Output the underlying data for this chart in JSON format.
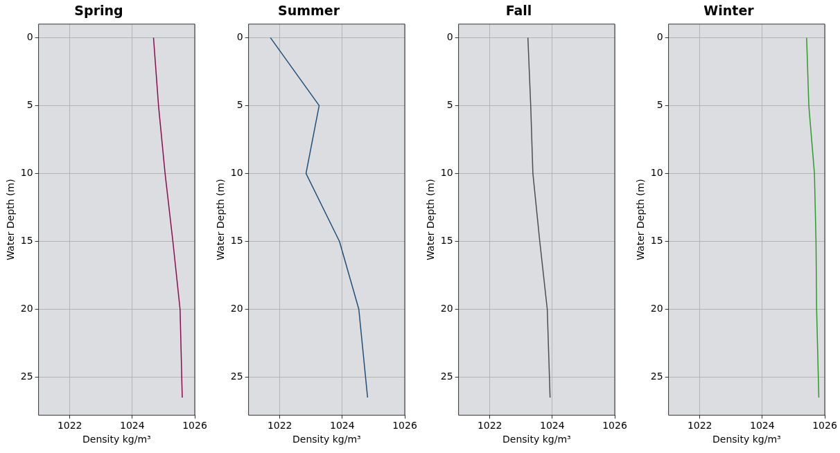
{
  "chart_data": [
    {
      "type": "line",
      "title": "Spring",
      "xlabel": "Density kg/m³",
      "ylabel": "Water Depth (m)",
      "xlim": [
        1021,
        1026
      ],
      "xticks": [
        1022,
        1024,
        1026
      ],
      "ylim": [
        27.8,
        -1
      ],
      "yticks": [
        0,
        5,
        10,
        15,
        20,
        25
      ],
      "grid": true,
      "legend": false,
      "marker": "none",
      "line_style": "solid",
      "series": [
        {
          "color": "#8b0a50",
          "x": [
            1024.68,
            1024.84,
            1025.05,
            1025.3,
            1025.53,
            1025.6
          ],
          "values": [
            0,
            5,
            10,
            15,
            20,
            26.5
          ]
        }
      ]
    },
    {
      "type": "line",
      "title": "Summer",
      "xlabel": "Density kg/m³",
      "ylabel": "Water Depth (m)",
      "xlim": [
        1021,
        1026
      ],
      "xticks": [
        1022,
        1024,
        1026
      ],
      "ylim": [
        27.8,
        -1
      ],
      "yticks": [
        0,
        5,
        10,
        15,
        20,
        25
      ],
      "grid": true,
      "legend": false,
      "marker": "none",
      "line_style": "solid",
      "series": [
        {
          "color": "#1f4e79",
          "x": [
            1021.7,
            1023.26,
            1022.84,
            1023.91,
            1024.53,
            1024.81
          ],
          "values": [
            0,
            5,
            10,
            15,
            20,
            26.5
          ]
        }
      ]
    },
    {
      "type": "line",
      "title": "Fall",
      "xlabel": "Density kg/m³",
      "ylabel": "Water Depth (m)",
      "xlim": [
        1021,
        1026
      ],
      "xticks": [
        1022,
        1024,
        1026
      ],
      "ylim": [
        27.8,
        -1
      ],
      "yticks": [
        0,
        5,
        10,
        15,
        20,
        25
      ],
      "grid": true,
      "legend": false,
      "marker": "none",
      "line_style": "solid",
      "series": [
        {
          "color": "#4d4d4d",
          "x": [
            1023.22,
            1023.31,
            1023.38,
            1023.6,
            1023.84,
            1023.93
          ],
          "values": [
            0,
            5,
            10,
            15,
            20,
            26.5
          ]
        }
      ]
    },
    {
      "type": "line",
      "title": "Winter",
      "xlabel": "Density kg/m³",
      "ylabel": "Water Depth (m)",
      "xlim": [
        1021,
        1026
      ],
      "xticks": [
        1022,
        1024,
        1026
      ],
      "ylim": [
        27.8,
        -1
      ],
      "yticks": [
        0,
        5,
        10,
        15,
        20,
        25
      ],
      "grid": true,
      "legend": false,
      "marker": "none",
      "line_style": "solid",
      "series": [
        {
          "color": "#2e9a2a",
          "x": [
            1025.42,
            1025.49,
            1025.67,
            1025.72,
            1025.74,
            1025.81
          ],
          "values": [
            0,
            5,
            10,
            15,
            20,
            26.5
          ]
        }
      ]
    }
  ]
}
